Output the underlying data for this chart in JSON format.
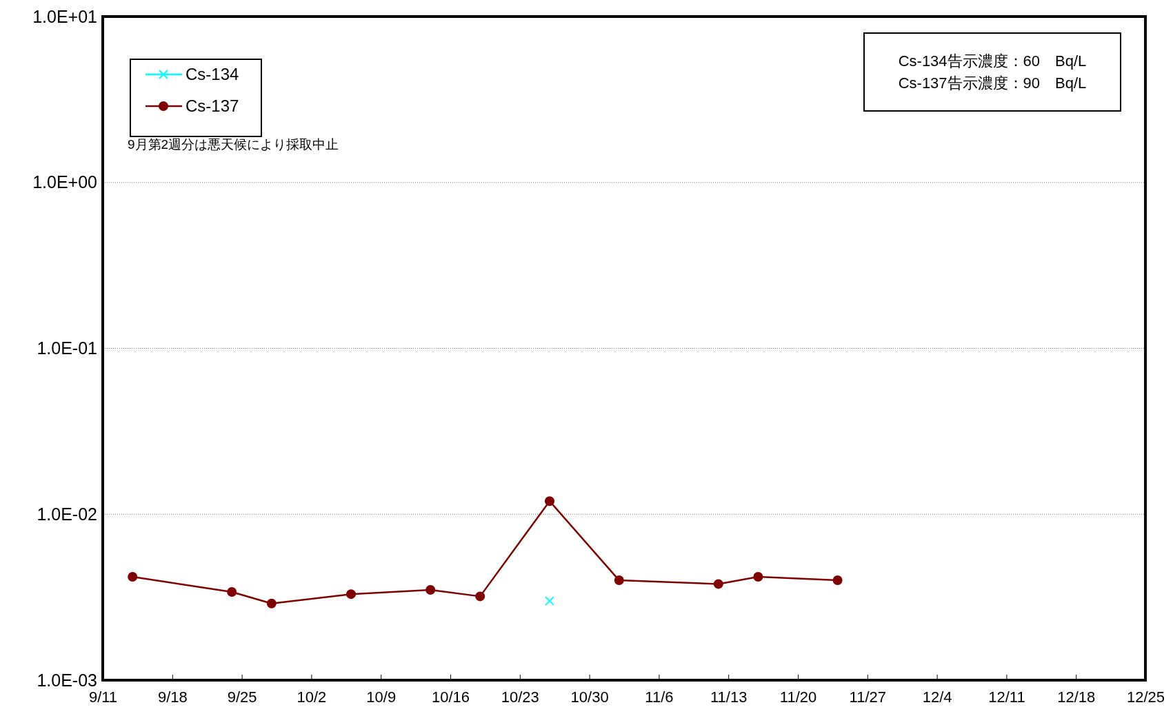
{
  "chart_data": {
    "type": "line",
    "x": [
      "--09-14",
      "--09-24",
      "--09-28",
      "--10-06",
      "--10-14",
      "--10-19",
      "--10-26",
      "--11-02",
      "--11-12",
      "--11-16",
      "--11-24"
    ],
    "series": [
      {
        "name": "Cs-134",
        "color": "#00ffff",
        "marker": "cross",
        "values": [
          null,
          null,
          null,
          null,
          null,
          null,
          0.003,
          null,
          null,
          null,
          null
        ]
      },
      {
        "name": "Cs-137",
        "color": "#800000",
        "marker": "circle",
        "values": [
          0.0042,
          0.0034,
          0.0029,
          0.0033,
          0.0035,
          0.0032,
          0.012,
          0.004,
          0.0038,
          0.0042,
          0.004
        ]
      }
    ],
    "log": "y",
    "ylim": [
      0.001,
      10
    ],
    "yticks": [
      {
        "value": 0.001,
        "label": "1.0E-03"
      },
      {
        "value": 0.01,
        "label": "1.0E-02"
      },
      {
        "value": 0.1,
        "label": "1.0E-01"
      },
      {
        "value": 1,
        "label": "1.0E+00"
      },
      {
        "value": 10,
        "label": "1.0E+01"
      }
    ],
    "xlim": [
      "--09-11",
      "--12-25"
    ],
    "xticks": [
      {
        "value": "--09-11",
        "label": "9/11"
      },
      {
        "value": "--09-18",
        "label": "9/18"
      },
      {
        "value": "--09-25",
        "label": "9/25"
      },
      {
        "value": "--10-02",
        "label": "10/2"
      },
      {
        "value": "--10-09",
        "label": "10/9"
      },
      {
        "value": "--10-16",
        "label": "10/16"
      },
      {
        "value": "--10-23",
        "label": "10/23"
      },
      {
        "value": "--10-30",
        "label": "10/30"
      },
      {
        "value": "--11-06",
        "label": "11/6"
      },
      {
        "value": "--11-13",
        "label": "11/13"
      },
      {
        "value": "--11-20",
        "label": "11/20"
      },
      {
        "value": "--11-27",
        "label": "11/27"
      },
      {
        "value": "--12-04",
        "label": "12/4"
      },
      {
        "value": "--12-11",
        "label": "12/11"
      },
      {
        "value": "--12-18",
        "label": "12/18"
      },
      {
        "value": "--12-25",
        "label": "12/25"
      }
    ],
    "grid": "y",
    "legend": "top left",
    "annotations": [
      "Cs-134告示濃度：60　Bq/L",
      "Cs-137告示濃度：90　Bq/L",
      "9月第2週分は悪天候により採取中止"
    ]
  }
}
